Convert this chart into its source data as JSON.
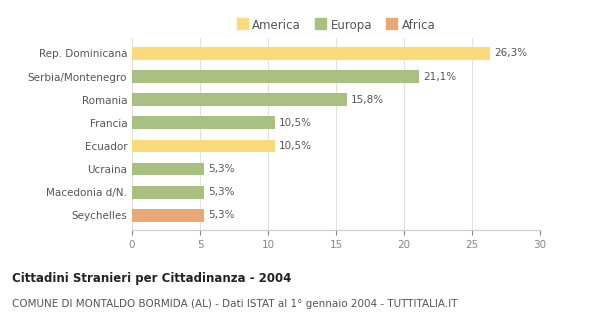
{
  "categories": [
    "Rep. Dominicana",
    "Serbia/Montenegro",
    "Romania",
    "Francia",
    "Ecuador",
    "Ucraina",
    "Macedonia d/N.",
    "Seychelles"
  ],
  "values": [
    26.3,
    21.1,
    15.8,
    10.5,
    10.5,
    5.3,
    5.3,
    5.3
  ],
  "labels": [
    "26,3%",
    "21,1%",
    "15,8%",
    "10,5%",
    "10,5%",
    "5,3%",
    "5,3%",
    "5,3%"
  ],
  "colors": [
    "#FADA7A",
    "#A8C080",
    "#A8C080",
    "#A8C080",
    "#FADA7A",
    "#A8C080",
    "#A8C080",
    "#E8A878"
  ],
  "legend_labels": [
    "America",
    "Europa",
    "Africa"
  ],
  "legend_colors": [
    "#FADA7A",
    "#A8C080",
    "#E8A878"
  ],
  "title_bold": "Cittadini Stranieri per Cittadinanza - 2004",
  "subtitle": "COMUNE DI MONTALDO BORMIDA (AL) - Dati ISTAT al 1° gennaio 2004 - TUTTITALIA.IT",
  "xlim": [
    0,
    30
  ],
  "xticks": [
    0,
    5,
    10,
    15,
    20,
    25,
    30
  ],
  "background_color": "#FFFFFF",
  "grid_color": "#E0E0E0",
  "bar_height": 0.55,
  "label_fontsize": 7.5,
  "ytick_fontsize": 7.5,
  "xtick_fontsize": 7.5,
  "legend_fontsize": 8.5,
  "title_fontsize": 8.5,
  "subtitle_fontsize": 7.5
}
